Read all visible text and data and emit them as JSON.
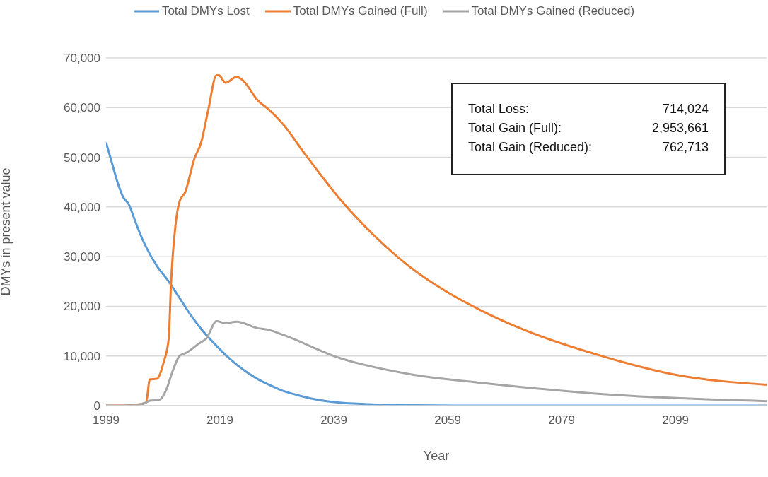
{
  "chart_data": {
    "type": "line",
    "xlabel": "Year",
    "ylabel": "DMYs in present value",
    "xlim": [
      1999,
      2115
    ],
    "xticks": [
      1999,
      2019,
      2039,
      2059,
      2079,
      2099
    ],
    "ylim": [
      0,
      70000
    ],
    "yticks": [
      {
        "value": 0,
        "label": "0"
      },
      {
        "value": 10000,
        "label": "10,000"
      },
      {
        "value": 20000,
        "label": "20,000"
      },
      {
        "value": 30000,
        "label": "30,000"
      },
      {
        "value": 40000,
        "label": "40,000"
      },
      {
        "value": 50000,
        "label": "50,000"
      },
      {
        "value": 60000,
        "label": "60,000"
      },
      {
        "value": 70000,
        "label": "70,000"
      }
    ],
    "grid": "y",
    "legend": "top",
    "marker": "none",
    "line_style": "solid",
    "annotations": [
      "Total Loss:",
      "714,024",
      "Total Gain (Full):",
      "2,953,661",
      "Total Gain (Reduced):",
      "762,713"
    ],
    "series": [
      {
        "name": "Total DMYs Lost",
        "color": "#5b9bd5",
        "x": [
          1999,
          2000,
          2001,
          2002,
          2003,
          2004,
          2005,
          2006,
          2008,
          2010,
          2012,
          2014,
          2016,
          2018,
          2020,
          2022,
          2024,
          2026,
          2028,
          2030,
          2033,
          2036,
          2040,
          2045,
          2050,
          2060,
          2080,
          2115
        ],
        "values": [
          53000,
          49000,
          45000,
          42000,
          40500,
          37500,
          34500,
          32000,
          28000,
          25000,
          21500,
          18000,
          15000,
          12500,
          10200,
          8200,
          6500,
          5100,
          4000,
          3000,
          2000,
          1200,
          600,
          300,
          100,
          0,
          0,
          0
        ]
      },
      {
        "name": "Total DMYs Gained (Full)",
        "color": "#ed7d31",
        "x": [
          1999,
          2002,
          2005,
          2006,
          2006.7,
          2007.9,
          2009.1,
          2010,
          2010.4,
          2011.2,
          2011.9,
          2012.9,
          2014.5,
          2015.7,
          2016.9,
          2018.4,
          2018.8,
          2020,
          2021.9,
          2023.1,
          2025.6,
          2027.7,
          2030.2,
          2033.9,
          2040,
          2046.3,
          2052.5,
          2058.7,
          2064.8,
          2072.3,
          2086.3,
          2098.6,
          2115
        ],
        "values": [
          0,
          0,
          300,
          600,
          5300,
          5400,
          8700,
          13500,
          24500,
          36400,
          41100,
          43000,
          49700,
          53000,
          59300,
          66500,
          66500,
          65000,
          66200,
          65400,
          61500,
          59500,
          56500,
          50700,
          41700,
          34000,
          27800,
          23000,
          19200,
          15300,
          9900,
          6300,
          4200
        ]
      },
      {
        "name": "Total DMYs Gained (Reduced)",
        "color": "#a5a5a5",
        "x": [
          1999,
          2003,
          2005.8,
          2006.7,
          2008.3,
          2009.5,
          2010.8,
          2011.9,
          2013.2,
          2015.3,
          2016.6,
          2018.4,
          2019.9,
          2021.9,
          2025.6,
          2027.7,
          2030.2,
          2040,
          2052.5,
          2064.8,
          2072.3,
          2086.3,
          2115
        ],
        "values": [
          0,
          0,
          500,
          1000,
          1100,
          3000,
          7300,
          10000,
          10700,
          12500,
          13500,
          17000,
          16600,
          16900,
          15600,
          15200,
          14200,
          9600,
          6300,
          4600,
          3700,
          2300,
          900
        ]
      }
    ]
  }
}
